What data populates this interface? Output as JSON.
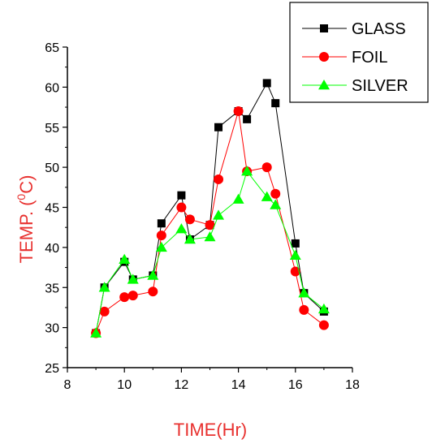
{
  "chart_data": {
    "type": "line",
    "title": "",
    "xlabel": "TIME(Hr)",
    "ylabel_prefix": "TEMP. (",
    "ylabel_sup": "0",
    "ylabel_suffix": "C)",
    "xlim": [
      8,
      18
    ],
    "ylim": [
      25,
      65
    ],
    "xticks": [
      8,
      10,
      12,
      14,
      16,
      18
    ],
    "yticks": [
      25,
      30,
      35,
      40,
      45,
      50,
      55,
      60,
      65
    ],
    "grid": false,
    "legend_position": "top-right",
    "label_color": "#e8312f",
    "series": [
      {
        "name": "GLASS",
        "color": "#000000",
        "marker": "square",
        "x": [
          9,
          9.3,
          10,
          10.3,
          11,
          11.3,
          12,
          12.3,
          13,
          13.3,
          14,
          14.3,
          15,
          15.3,
          16,
          16.3,
          17
        ],
        "y": [
          29.3,
          35.0,
          38.2,
          36.0,
          36.5,
          43.0,
          46.5,
          41.0,
          42.8,
          55.0,
          57.0,
          56.0,
          60.5,
          58.0,
          40.5,
          34.3,
          32.0
        ]
      },
      {
        "name": "FOIL",
        "color": "#ff0000",
        "marker": "circle",
        "x": [
          9,
          9.3,
          10,
          10.3,
          11,
          11.3,
          12,
          12.3,
          13,
          13.3,
          14,
          14.3,
          15,
          15.3,
          16,
          16.3,
          17
        ],
        "y": [
          29.3,
          32.0,
          33.8,
          34.0,
          34.5,
          41.5,
          45.0,
          43.5,
          42.8,
          48.5,
          57.0,
          49.5,
          50.0,
          46.7,
          37.0,
          32.2,
          30.3
        ]
      },
      {
        "name": "SILVER",
        "color": "#00ff00",
        "marker": "triangle",
        "x": [
          9,
          9.3,
          10,
          10.3,
          11,
          11.3,
          12,
          12.3,
          13,
          13.3,
          14,
          14.3,
          15,
          15.3,
          16,
          16.3,
          17
        ],
        "y": [
          29.3,
          35.0,
          38.5,
          36.0,
          36.5,
          40.0,
          42.3,
          41.0,
          41.3,
          44.0,
          46.0,
          49.5,
          46.3,
          45.3,
          39.0,
          34.3,
          32.3
        ]
      }
    ]
  }
}
